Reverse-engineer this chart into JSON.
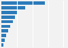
{
  "values": [
    2800,
    1550,
    1000,
    880,
    750,
    560,
    430,
    320,
    200,
    120
  ],
  "bar_color": "#2b7bba",
  "background_color": "#f2f2f2",
  "plot_bg_color": "#f2f2f2",
  "xlim": [
    0,
    4200
  ],
  "grid_values": [
    1000,
    2000,
    3000,
    4000
  ],
  "grid_color": "#ffffff",
  "figsize": [
    1.0,
    0.71
  ],
  "dpi": 100,
  "bar_height": 0.7
}
